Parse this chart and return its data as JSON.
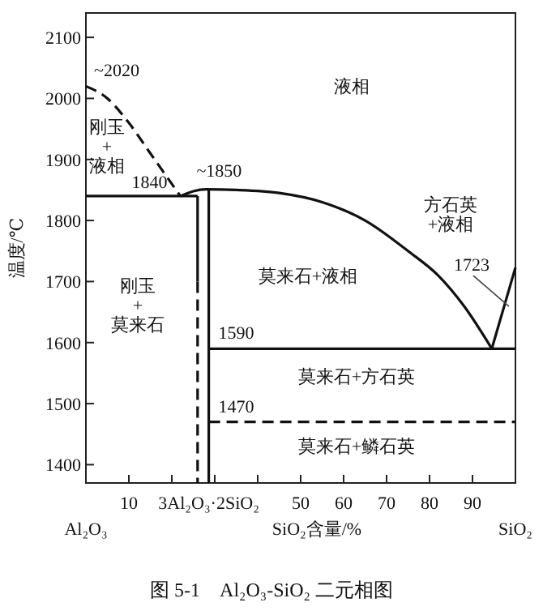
{
  "chart_data": {
    "type": "line",
    "title": "图 5-1　Al₂O₃-SiO₂ 二元相图",
    "xlabel": "SiO₂含量/%",
    "ylabel": "温度/℃",
    "xlim": [
      0,
      100
    ],
    "ylim": [
      1370,
      2140
    ],
    "xticks": [
      10,
      {
        "value": 20,
        "label": null
      },
      {
        "value": 28.6,
        "label": "3Al₂O₃·2SiO₂"
      },
      {
        "value": 30,
        "label": null
      },
      {
        "value": 40,
        "label": null
      },
      50,
      60,
      70,
      80,
      90
    ],
    "yticks": [
      1400,
      1500,
      1600,
      1700,
      1800,
      1900,
      2000,
      2100
    ],
    "grid": false,
    "marker": "none",
    "series": [
      {
        "color": "#111111",
        "line_style": "dashed",
        "x": [
          0,
          5,
          10,
          15,
          19,
          22
        ],
        "values": [
          2020,
          2000,
          1960,
          1910,
          1870,
          1840
        ]
      },
      {
        "color": "#111111",
        "line_style": "solid",
        "x": [
          22,
          25,
          28,
          35,
          45,
          55,
          65,
          75,
          82,
          88,
          94.5
        ],
        "values": [
          1840,
          1848,
          1851,
          1850,
          1845,
          1830,
          1800,
          1750,
          1710,
          1660,
          1590
        ]
      },
      {
        "color": "#111111",
        "line_style": "solid",
        "x": [
          94.5,
          100
        ],
        "values": [
          1590,
          1723
        ]
      },
      {
        "color": "#111111",
        "line_style": "solid",
        "x": [
          0,
          26
        ],
        "values": [
          1840,
          1840
        ]
      },
      {
        "color": "#111111",
        "line_style": "solid",
        "x": [
          26,
          26
        ],
        "values": [
          1840,
          1700
        ]
      },
      {
        "color": "#111111",
        "line_style": "dashed",
        "x": [
          26,
          26
        ],
        "values": [
          1700,
          1370
        ]
      },
      {
        "color": "#111111",
        "line_style": "solid",
        "x": [
          28.6,
          28.6
        ],
        "values": [
          1851,
          1370
        ]
      },
      {
        "color": "#111111",
        "line_style": "solid",
        "x": [
          28.6,
          100
        ],
        "values": [
          1590,
          1590
        ]
      },
      {
        "color": "#111111",
        "line_style": "dashed",
        "x": [
          28.6,
          100
        ],
        "values": [
          1470,
          1470
        ]
      }
    ],
    "annotations": [
      {
        "text": "~2020",
        "x": 0,
        "y": 2020
      },
      {
        "text": "1840",
        "x": 22,
        "y": 1840
      },
      {
        "text": "~1850",
        "x": 28,
        "y": 1851
      },
      {
        "text": "1723",
        "x": 100,
        "y": 1723
      },
      {
        "text": "1590",
        "x": 28.6,
        "y": 1590
      },
      {
        "text": "1470",
        "x": 28.6,
        "y": 1470
      },
      "液相",
      "刚玉\n+\n液相",
      "方石英\n+液相",
      "莫来石+液相",
      "刚玉\n+\n莫来石",
      "莫来石+方石英",
      "莫来石+鳞石英",
      "Al₂O₃",
      "SiO₂"
    ]
  }
}
